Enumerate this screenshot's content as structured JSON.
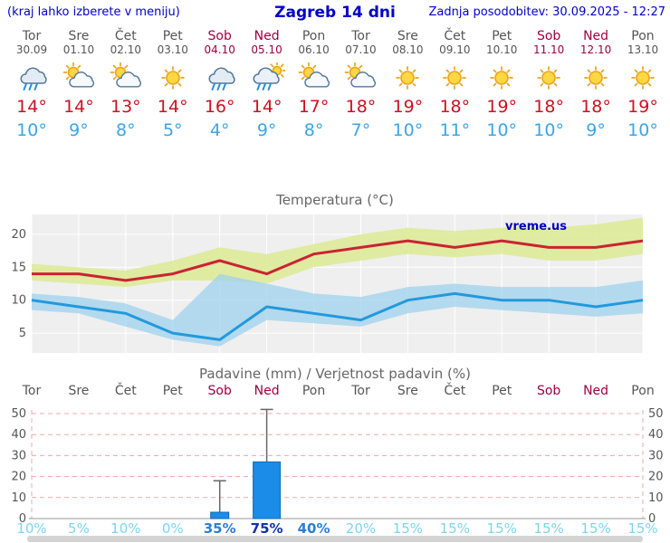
{
  "header": {
    "hint": "(kraj lahko izberete v meniju)",
    "title": "Zagreb 14 dni",
    "updated": "Zadnja posodobitev: 30.09.2025 - 12:27"
  },
  "watermark": "vreme.us",
  "colors": {
    "blue_text": "#0000cc",
    "day_normal": "#555555",
    "day_weekend": "#a00040",
    "temp_max": "#cc1122",
    "temp_min": "#3aa6e8",
    "percent_light": "#7dd4f0",
    "percent_medium": "#2a7fd4",
    "percent_dark": "#1133aa",
    "bar_fill": "#1b8ce8",
    "bar_stroke": "#0f6ab8",
    "grid_pink": "#f0a8a8",
    "axis_gray": "#999999",
    "chart_bg": "#efefef",
    "tick_gray": "#555555"
  },
  "days": [
    {
      "name": "Tor",
      "date": "30.09",
      "weekend": false,
      "icon": "rain",
      "tmax": 14,
      "tmin": 10,
      "prob": 10
    },
    {
      "name": "Sre",
      "date": "01.10",
      "weekend": false,
      "icon": "partly-cloudy",
      "tmax": 14,
      "tmin": 9,
      "prob": 5
    },
    {
      "name": "Čet",
      "date": "02.10",
      "weekend": false,
      "icon": "partly-cloudy",
      "tmax": 13,
      "tmin": 8,
      "prob": 10
    },
    {
      "name": "Pet",
      "date": "03.10",
      "weekend": false,
      "icon": "sunny",
      "tmax": 14,
      "tmin": 5,
      "prob": 0
    },
    {
      "name": "Sob",
      "date": "04.10",
      "weekend": true,
      "icon": "rain",
      "tmax": 16,
      "tmin": 4,
      "prob": 35
    },
    {
      "name": "Ned",
      "date": "05.10",
      "weekend": true,
      "icon": "rain-sun",
      "tmax": 14,
      "tmin": 9,
      "prob": 75
    },
    {
      "name": "Pon",
      "date": "06.10",
      "weekend": false,
      "icon": "partly-cloudy",
      "tmax": 17,
      "tmin": 8,
      "prob": 40
    },
    {
      "name": "Tor",
      "date": "07.10",
      "weekend": false,
      "icon": "partly-cloudy",
      "tmax": 18,
      "tmin": 7,
      "prob": 20
    },
    {
      "name": "Sre",
      "date": "08.10",
      "weekend": false,
      "icon": "sunny",
      "tmax": 19,
      "tmin": 10,
      "prob": 15
    },
    {
      "name": "Čet",
      "date": "09.10",
      "weekend": false,
      "icon": "sunny",
      "tmax": 18,
      "tmin": 11,
      "prob": 15
    },
    {
      "name": "Pet",
      "date": "10.10",
      "weekend": false,
      "icon": "sunny",
      "tmax": 19,
      "tmin": 10,
      "prob": 15
    },
    {
      "name": "Sob",
      "date": "11.10",
      "weekend": true,
      "icon": "sunny",
      "tmax": 18,
      "tmin": 10,
      "prob": 15
    },
    {
      "name": "Ned",
      "date": "12.10",
      "weekend": true,
      "icon": "sunny",
      "tmax": 18,
      "tmin": 9,
      "prob": 15
    },
    {
      "name": "Pon",
      "date": "13.10",
      "weekend": false,
      "icon": "sunny",
      "tmax": 19,
      "tmin": 10,
      "prob": 15
    }
  ],
  "chart_data": [
    {
      "type": "line",
      "title": "Temperatura (°C)",
      "categories": [
        "Tor",
        "Sre",
        "Čet",
        "Pet",
        "Sob",
        "Ned",
        "Pon",
        "Tor",
        "Sre",
        "Čet",
        "Pet",
        "Sob",
        "Ned",
        "Pon"
      ],
      "series": [
        {
          "name": "max temperatura",
          "color": "#cc2233",
          "values": [
            14,
            14,
            13,
            14,
            16,
            14,
            17,
            18,
            19,
            18,
            19,
            18,
            18,
            19
          ]
        },
        {
          "name": "min temperatura",
          "color": "#2299dd",
          "values": [
            10,
            9,
            8,
            5,
            4,
            9,
            8,
            7,
            10,
            11,
            10,
            10,
            9,
            10
          ]
        }
      ],
      "bands": [
        {
          "name": "max razpon",
          "color": "#dcea93",
          "upper": [
            15.5,
            15,
            14.5,
            16,
            18,
            17,
            18.5,
            20,
            21,
            20.5,
            21,
            21,
            21.5,
            22.5
          ],
          "lower": [
            13,
            12.5,
            12,
            13,
            13,
            12.5,
            15,
            16,
            17,
            16.5,
            17,
            16,
            16,
            17
          ]
        },
        {
          "name": "min razpon",
          "color": "#9fd2ee",
          "upper": [
            11,
            10.5,
            9.5,
            7,
            14,
            12.5,
            11,
            10.5,
            12,
            12.5,
            12,
            12,
            12,
            13
          ],
          "lower": [
            8.5,
            8,
            6,
            4,
            3,
            7,
            6.5,
            6,
            8,
            9,
            8.5,
            8,
            7.5,
            8
          ]
        }
      ],
      "ylim": [
        2,
        23
      ],
      "yticks": [
        5,
        10,
        15,
        20
      ],
      "grid": true,
      "legend_position": "none"
    },
    {
      "type": "bar",
      "title": "Padavine (mm) / Verjetnost padavin (%)",
      "categories": [
        "Tor",
        "Sre",
        "Čet",
        "Pet",
        "Sob",
        "Ned",
        "Pon",
        "Tor",
        "Sre",
        "Čet",
        "Pet",
        "Sob",
        "Ned",
        "Pon"
      ],
      "values": [
        0,
        0,
        0,
        0,
        3,
        27,
        0,
        0,
        0,
        0,
        0,
        0,
        0,
        0
      ],
      "whisker_max": [
        0,
        0,
        0,
        0,
        18,
        52,
        0,
        0,
        0,
        0,
        0,
        0,
        0,
        0
      ],
      "probabilities": [
        10,
        5,
        10,
        0,
        35,
        75,
        40,
        20,
        15,
        15,
        15,
        15,
        15,
        15
      ],
      "ylim": [
        0,
        52
      ],
      "yticks": [
        0,
        10,
        20,
        30,
        40,
        50
      ],
      "grid": true,
      "legend_position": "none"
    }
  ]
}
